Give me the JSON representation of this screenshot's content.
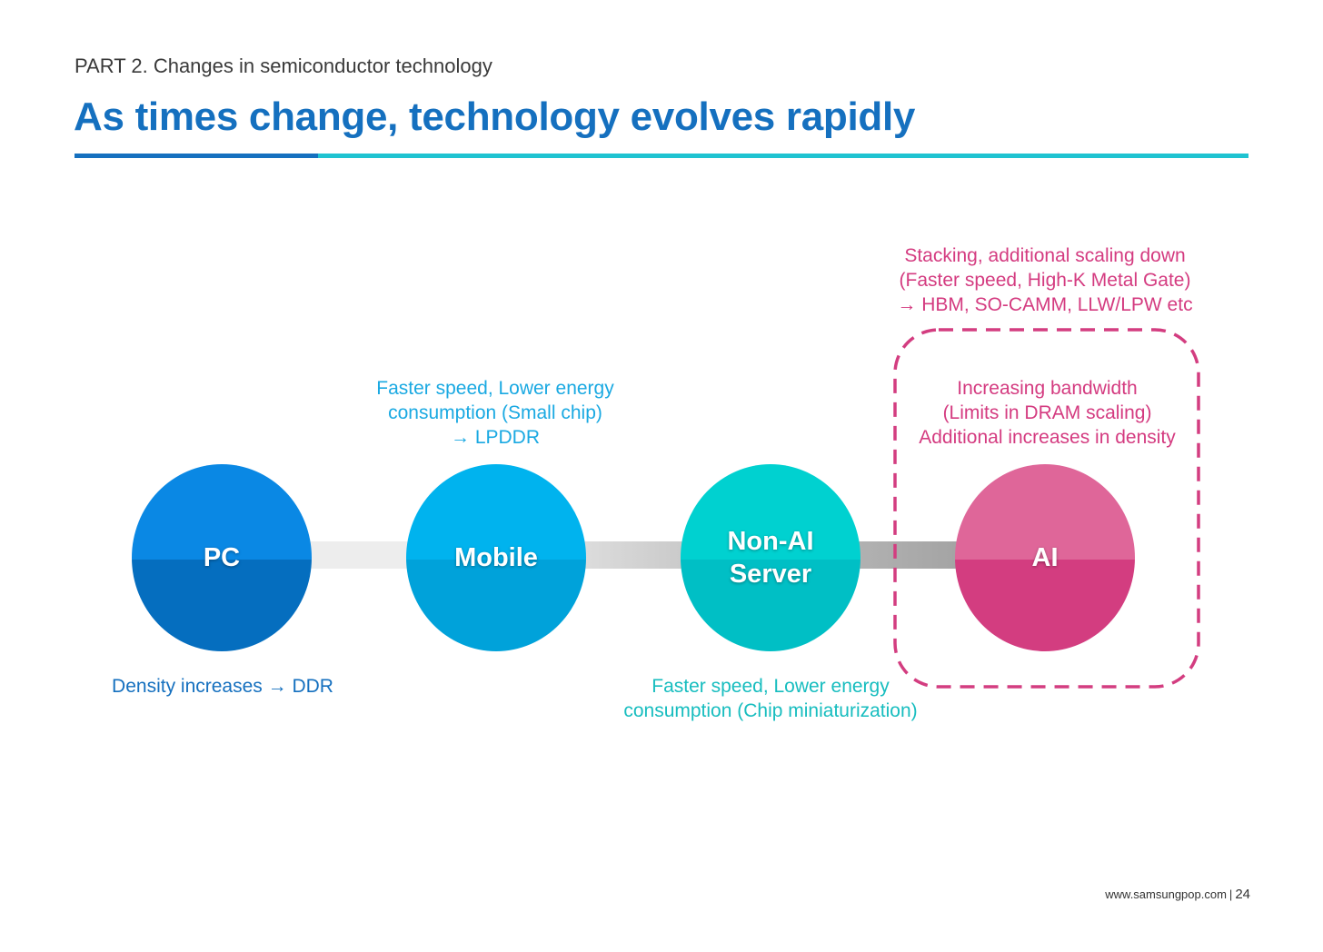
{
  "header": {
    "part": "PART 2. Changes in semiconductor technology",
    "title": "As times change, technology evolves rapidly"
  },
  "stages": [
    {
      "label_line1": "PC",
      "label_line2": ""
    },
    {
      "label_line1": "Mobile",
      "label_line2": ""
    },
    {
      "label_line1": "Non-AI",
      "label_line2": "Server"
    },
    {
      "label_line1": "AI",
      "label_line2": ""
    }
  ],
  "notes": {
    "pc": [
      "Density increases → DDR"
    ],
    "mobile": [
      "Faster speed, Lower energy",
      "consumption (Small chip)",
      "→ LPDDR"
    ],
    "server": [
      "Faster speed, Lower energy",
      "consumption (Chip miniaturization)"
    ],
    "ai_top": [
      "Stacking, additional scaling down",
      "(Faster speed, High-K Metal Gate)",
      "→ HBM, SO-CAMM, LLW/LPW etc"
    ],
    "ai_inner": [
      "Increasing bandwidth",
      "(Limits in DRAM scaling)",
      "Additional increases in density"
    ]
  },
  "footer": {
    "site": "www.samsungpop.com",
    "separator": "|",
    "page": "24"
  },
  "colors": {
    "title_blue": "#1570bf",
    "accent_cyan": "#1fc3d1",
    "pc": "#0a88e4",
    "mobile": "#00b3ee",
    "server": "#00d1d0",
    "ai": "#d33d80"
  }
}
